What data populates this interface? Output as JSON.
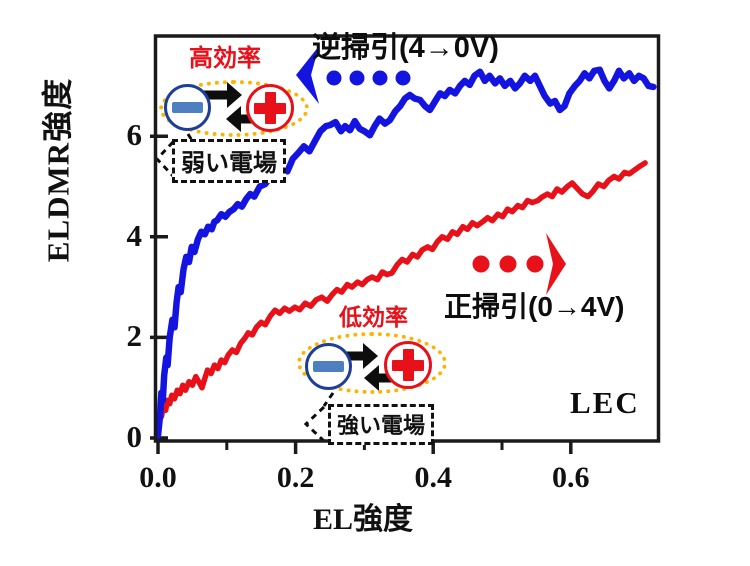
{
  "figure": {
    "y_axis_label": "ELDMR強度",
    "x_axis_label": "EL強度",
    "corner_label": "LEC"
  },
  "annotations": {
    "reverse_sweep_label": "逆掃引(4→0V)",
    "forward_sweep_label": "正掃引(0→4V)",
    "high_efficiency_label": "高効率",
    "low_efficiency_label": "低効率",
    "weak_field_label": "弱い電場",
    "strong_field_label": "強い電場"
  },
  "colors": {
    "blue": "#1414e0",
    "red": "#e8111a",
    "steel": "#4e7fc1",
    "navy": "#1d3f97",
    "orange": "#ffb301",
    "black": "#0d0d0d",
    "axis": "#1a1a1a"
  },
  "chart_data": {
    "type": "line",
    "title": "",
    "xlabel": "EL強度",
    "ylabel": "ELDMR強度",
    "xlim": [
      0,
      0.73
    ],
    "ylim": [
      0,
      8.1
    ],
    "grid": false,
    "x_ticks": [
      0,
      0.2,
      0.4,
      0.6
    ],
    "x_tick_labels": [
      "0.0",
      "0.2",
      "0.4",
      "0.6"
    ],
    "x_minor_ticks": [
      0.1,
      0.3,
      0.5
    ],
    "y_ticks": [
      0,
      2,
      4,
      6
    ],
    "y_tick_labels": [
      "0",
      "2",
      "4",
      "6"
    ],
    "legend_position": "none",
    "series": [
      {
        "name": "正掃引(0→4V)",
        "color_key": "red",
        "points": [
          [
            0.0,
            0.1
          ],
          [
            0.003,
            0.5
          ],
          [
            0.005,
            0.42
          ],
          [
            0.008,
            0.65
          ],
          [
            0.011,
            0.55
          ],
          [
            0.014,
            0.75
          ],
          [
            0.017,
            0.68
          ],
          [
            0.02,
            0.85
          ],
          [
            0.024,
            0.78
          ],
          [
            0.028,
            0.95
          ],
          [
            0.032,
            0.88
          ],
          [
            0.036,
            1.05
          ],
          [
            0.04,
            0.95
          ],
          [
            0.045,
            1.12
          ],
          [
            0.05,
            1.05
          ],
          [
            0.055,
            1.22
          ],
          [
            0.06,
            1.1
          ],
          [
            0.064,
            1.0
          ],
          [
            0.068,
            1.18
          ],
          [
            0.072,
            1.35
          ],
          [
            0.077,
            1.28
          ],
          [
            0.082,
            1.45
          ],
          [
            0.087,
            1.38
          ],
          [
            0.092,
            1.55
          ],
          [
            0.097,
            1.5
          ],
          [
            0.102,
            1.65
          ],
          [
            0.108,
            1.75
          ],
          [
            0.114,
            1.7
          ],
          [
            0.12,
            1.88
          ],
          [
            0.126,
            1.98
          ],
          [
            0.131,
            2.09
          ],
          [
            0.137,
            2.05
          ],
          [
            0.143,
            2.2
          ],
          [
            0.15,
            2.3
          ],
          [
            0.156,
            2.25
          ],
          [
            0.163,
            2.42
          ],
          [
            0.17,
            2.54
          ],
          [
            0.177,
            2.48
          ],
          [
            0.184,
            2.58
          ],
          [
            0.191,
            2.52
          ],
          [
            0.199,
            2.6
          ],
          [
            0.206,
            2.55
          ],
          [
            0.214,
            2.68
          ],
          [
            0.222,
            2.62
          ],
          [
            0.23,
            2.75
          ],
          [
            0.238,
            2.8
          ],
          [
            0.246,
            2.72
          ],
          [
            0.253,
            2.85
          ],
          [
            0.26,
            2.95
          ],
          [
            0.267,
            2.9
          ],
          [
            0.275,
            3.05
          ],
          [
            0.282,
            3.0
          ],
          [
            0.29,
            3.1
          ],
          [
            0.297,
            3.05
          ],
          [
            0.304,
            3.15
          ],
          [
            0.311,
            3.2
          ],
          [
            0.319,
            3.15
          ],
          [
            0.326,
            3.3
          ],
          [
            0.333,
            3.25
          ],
          [
            0.34,
            3.28
          ],
          [
            0.348,
            3.45
          ],
          [
            0.355,
            3.55
          ],
          [
            0.362,
            3.5
          ],
          [
            0.37,
            3.65
          ],
          [
            0.377,
            3.6
          ],
          [
            0.384,
            3.74
          ],
          [
            0.392,
            3.8
          ],
          [
            0.399,
            3.75
          ],
          [
            0.406,
            3.9
          ],
          [
            0.413,
            4.0
          ],
          [
            0.421,
            3.95
          ],
          [
            0.428,
            4.1
          ],
          [
            0.435,
            4.05
          ],
          [
            0.443,
            4.2
          ],
          [
            0.45,
            4.15
          ],
          [
            0.457,
            4.28
          ],
          [
            0.464,
            4.22
          ],
          [
            0.472,
            4.3
          ],
          [
            0.479,
            4.38
          ],
          [
            0.486,
            4.32
          ],
          [
            0.494,
            4.45
          ],
          [
            0.501,
            4.4
          ],
          [
            0.508,
            4.55
          ],
          [
            0.515,
            4.5
          ],
          [
            0.523,
            4.62
          ],
          [
            0.53,
            4.58
          ],
          [
            0.537,
            4.72
          ],
          [
            0.544,
            4.68
          ],
          [
            0.552,
            4.72
          ],
          [
            0.558,
            4.79
          ],
          [
            0.566,
            4.85
          ],
          [
            0.573,
            4.8
          ],
          [
            0.58,
            4.95
          ],
          [
            0.587,
            4.89
          ],
          [
            0.595,
            5.0
          ],
          [
            0.602,
            5.07
          ],
          [
            0.61,
            4.95
          ],
          [
            0.617,
            4.85
          ],
          [
            0.625,
            4.8
          ],
          [
            0.632,
            4.9
          ],
          [
            0.64,
            5.05
          ],
          [
            0.648,
            5.0
          ],
          [
            0.655,
            5.12
          ],
          [
            0.663,
            5.2
          ],
          [
            0.67,
            5.15
          ],
          [
            0.678,
            5.28
          ],
          [
            0.685,
            5.25
          ],
          [
            0.693,
            5.33
          ],
          [
            0.7,
            5.4
          ],
          [
            0.708,
            5.47
          ]
        ]
      },
      {
        "name": "逆掃引(4→0V)",
        "color_key": "blue",
        "points": [
          [
            0.0,
            0.05
          ],
          [
            0.003,
            0.45
          ],
          [
            0.005,
            0.9
          ],
          [
            0.007,
            0.75
          ],
          [
            0.009,
            1.25
          ],
          [
            0.012,
            1.6
          ],
          [
            0.014,
            1.45
          ],
          [
            0.017,
            2.0
          ],
          [
            0.021,
            2.35
          ],
          [
            0.024,
            2.2
          ],
          [
            0.027,
            2.7
          ],
          [
            0.03,
            3.0
          ],
          [
            0.033,
            2.9
          ],
          [
            0.037,
            3.35
          ],
          [
            0.041,
            3.6
          ],
          [
            0.045,
            3.5
          ],
          [
            0.049,
            3.8
          ],
          [
            0.053,
            3.7
          ],
          [
            0.058,
            3.95
          ],
          [
            0.063,
            4.1
          ],
          [
            0.068,
            4.05
          ],
          [
            0.073,
            4.2
          ],
          [
            0.078,
            4.15
          ],
          [
            0.082,
            4.3
          ],
          [
            0.086,
            4.33
          ],
          [
            0.092,
            4.45
          ],
          [
            0.098,
            4.4
          ],
          [
            0.104,
            4.5
          ],
          [
            0.11,
            4.55
          ],
          [
            0.116,
            4.65
          ],
          [
            0.122,
            4.6
          ],
          [
            0.128,
            4.75
          ],
          [
            0.134,
            4.85
          ],
          [
            0.14,
            4.8
          ],
          [
            0.148,
            5.0
          ],
          [
            0.156,
            5.05
          ],
          [
            0.164,
            5.2
          ],
          [
            0.172,
            5.3
          ],
          [
            0.18,
            5.4
          ],
          [
            0.188,
            5.3
          ],
          [
            0.196,
            5.55
          ],
          [
            0.204,
            5.67
          ],
          [
            0.212,
            5.8
          ],
          [
            0.22,
            5.7
          ],
          [
            0.228,
            5.9
          ],
          [
            0.236,
            6.1
          ],
          [
            0.244,
            6.2
          ],
          [
            0.25,
            6.22
          ],
          [
            0.258,
            6.28
          ],
          [
            0.266,
            6.1
          ],
          [
            0.272,
            6.2
          ],
          [
            0.279,
            6.12
          ],
          [
            0.286,
            6.3
          ],
          [
            0.293,
            6.15
          ],
          [
            0.3,
            6.1
          ],
          [
            0.308,
            6.02
          ],
          [
            0.315,
            6.2
          ],
          [
            0.322,
            6.35
          ],
          [
            0.33,
            6.25
          ],
          [
            0.337,
            6.32
          ],
          [
            0.345,
            6.5
          ],
          [
            0.352,
            6.6
          ],
          [
            0.359,
            6.75
          ],
          [
            0.366,
            6.82
          ],
          [
            0.373,
            6.75
          ],
          [
            0.381,
            6.72
          ],
          [
            0.388,
            6.6
          ],
          [
            0.395,
            6.52
          ],
          [
            0.403,
            6.7
          ],
          [
            0.41,
            6.85
          ],
          [
            0.417,
            6.8
          ],
          [
            0.424,
            6.92
          ],
          [
            0.432,
            6.85
          ],
          [
            0.439,
            7.0
          ],
          [
            0.446,
            7.1
          ],
          [
            0.453,
            7.02
          ],
          [
            0.46,
            7.2
          ],
          [
            0.468,
            7.28
          ],
          [
            0.475,
            7.1
          ],
          [
            0.482,
            7.2
          ],
          [
            0.49,
            7.05
          ],
          [
            0.497,
            7.15
          ],
          [
            0.504,
            7.0
          ],
          [
            0.512,
            7.1
          ],
          [
            0.519,
            6.95
          ],
          [
            0.526,
            7.05
          ],
          [
            0.533,
            7.2
          ],
          [
            0.541,
            7.1
          ],
          [
            0.548,
            7.2
          ],
          [
            0.555,
            7.0
          ],
          [
            0.562,
            6.8
          ],
          [
            0.57,
            6.65
          ],
          [
            0.577,
            6.7
          ],
          [
            0.584,
            6.52
          ],
          [
            0.591,
            6.6
          ],
          [
            0.598,
            6.85
          ],
          [
            0.606,
            7.0
          ],
          [
            0.613,
            7.1
          ],
          [
            0.62,
            7.25
          ],
          [
            0.627,
            7.15
          ],
          [
            0.634,
            7.3
          ],
          [
            0.642,
            7.32
          ],
          [
            0.649,
            7.1
          ],
          [
            0.656,
            6.95
          ],
          [
            0.663,
            7.1
          ],
          [
            0.67,
            7.3
          ],
          [
            0.677,
            7.15
          ],
          [
            0.685,
            7.25
          ],
          [
            0.692,
            7.1
          ],
          [
            0.699,
            7.2
          ],
          [
            0.706,
            7.15
          ],
          [
            0.713,
            7.0
          ],
          [
            0.72,
            6.98
          ]
        ]
      }
    ]
  }
}
